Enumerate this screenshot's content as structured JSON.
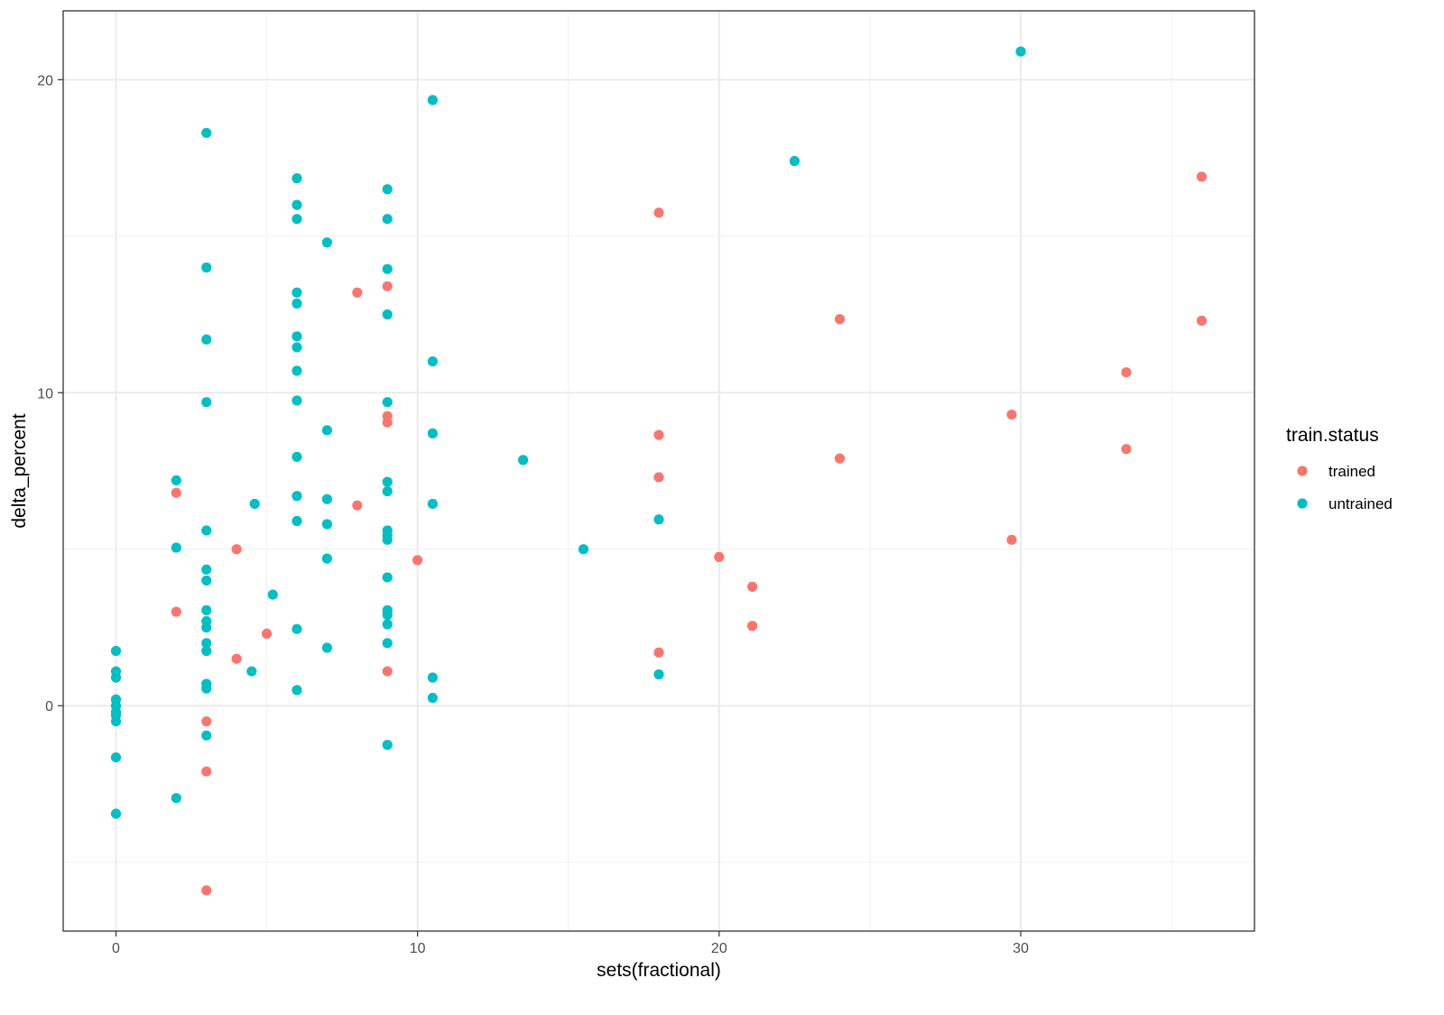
{
  "chart_data": {
    "type": "scatter",
    "title": "",
    "xlabel": "sets(fractional)",
    "ylabel": "delta_percent",
    "xlim": [
      -1.75,
      37.75
    ],
    "ylim": [
      -7.2,
      22.2
    ],
    "x_ticks": [
      0,
      10,
      20,
      30
    ],
    "y_ticks": [
      0,
      10,
      20
    ],
    "x_tick_labels": [
      "0",
      "10",
      "20",
      "30"
    ],
    "y_tick_labels": [
      "0",
      "10",
      "20"
    ],
    "grid": true,
    "legend": {
      "title": "train.status",
      "placement": "right",
      "entries": [
        "trained",
        "untrained"
      ]
    },
    "colors": {
      "trained": "#F8766D",
      "untrained": "#00BFC4"
    },
    "series": [
      {
        "name": "trained",
        "points": [
          [
            2,
            6.8
          ],
          [
            2,
            3.0
          ],
          [
            3,
            -0.5
          ],
          [
            3,
            -2.1
          ],
          [
            3,
            -5.9
          ],
          [
            4,
            5.0
          ],
          [
            4,
            1.5
          ],
          [
            5,
            2.3
          ],
          [
            8,
            6.4
          ],
          [
            8,
            13.2
          ],
          [
            9,
            13.4
          ],
          [
            9,
            9.25
          ],
          [
            9,
            9.05
          ],
          [
            9,
            3.0
          ],
          [
            9,
            1.1
          ],
          [
            10,
            4.65
          ],
          [
            18,
            15.75
          ],
          [
            18,
            8.65
          ],
          [
            18,
            7.3
          ],
          [
            18,
            1.7
          ],
          [
            20,
            4.75
          ],
          [
            21.1,
            3.8
          ],
          [
            21.1,
            2.55
          ],
          [
            24,
            12.35
          ],
          [
            24,
            7.9
          ],
          [
            29.7,
            9.3
          ],
          [
            29.7,
            5.3
          ],
          [
            33.5,
            10.65
          ],
          [
            33.5,
            8.2
          ],
          [
            36,
            16.9
          ],
          [
            36,
            12.3
          ]
        ]
      },
      {
        "name": "untrained",
        "points": [
          [
            0,
            1.75
          ],
          [
            0,
            1.1
          ],
          [
            0,
            0.9
          ],
          [
            0,
            0.2
          ],
          [
            0,
            0.0
          ],
          [
            0,
            -0.2
          ],
          [
            0,
            -0.3
          ],
          [
            0,
            -0.5
          ],
          [
            0,
            -1.65
          ],
          [
            0,
            -3.45
          ],
          [
            2,
            7.2
          ],
          [
            2,
            5.05
          ],
          [
            2,
            -2.95
          ],
          [
            3,
            18.3
          ],
          [
            3,
            14.0
          ],
          [
            3,
            11.7
          ],
          [
            3,
            9.7
          ],
          [
            3,
            5.6
          ],
          [
            3,
            4.35
          ],
          [
            3,
            4.0
          ],
          [
            3,
            3.05
          ],
          [
            3,
            2.7
          ],
          [
            3,
            2.5
          ],
          [
            3,
            2.0
          ],
          [
            3,
            1.75
          ],
          [
            3,
            0.7
          ],
          [
            3,
            0.55
          ],
          [
            3,
            -0.95
          ],
          [
            4.5,
            1.1
          ],
          [
            4.6,
            6.45
          ],
          [
            5.2,
            3.55
          ],
          [
            6,
            16.85
          ],
          [
            6,
            16.0
          ],
          [
            6,
            15.55
          ],
          [
            6,
            13.2
          ],
          [
            6,
            12.85
          ],
          [
            6,
            11.8
          ],
          [
            6,
            11.45
          ],
          [
            6,
            10.7
          ],
          [
            6,
            9.75
          ],
          [
            6,
            7.95
          ],
          [
            6,
            6.7
          ],
          [
            6,
            5.9
          ],
          [
            6,
            2.45
          ],
          [
            6,
            0.5
          ],
          [
            7,
            14.8
          ],
          [
            7,
            8.8
          ],
          [
            7,
            6.6
          ],
          [
            7,
            5.8
          ],
          [
            7,
            4.7
          ],
          [
            7,
            1.85
          ],
          [
            9,
            16.5
          ],
          [
            9,
            15.55
          ],
          [
            9,
            13.95
          ],
          [
            9,
            12.5
          ],
          [
            9,
            9.7
          ],
          [
            9,
            7.15
          ],
          [
            9,
            6.85
          ],
          [
            9,
            5.6
          ],
          [
            9,
            5.45
          ],
          [
            9,
            5.3
          ],
          [
            9,
            4.1
          ],
          [
            9,
            3.05
          ],
          [
            9,
            2.9
          ],
          [
            9,
            2.6
          ],
          [
            9,
            2.0
          ],
          [
            9,
            -1.25
          ],
          [
            10.5,
            19.35
          ],
          [
            10.5,
            11.0
          ],
          [
            10.5,
            8.7
          ],
          [
            10.5,
            6.45
          ],
          [
            10.5,
            0.9
          ],
          [
            10.5,
            0.25
          ],
          [
            13.5,
            7.85
          ],
          [
            15.5,
            5.0
          ],
          [
            18,
            5.95
          ],
          [
            18,
            1.0
          ],
          [
            22.5,
            17.4
          ],
          [
            30,
            20.9
          ]
        ]
      }
    ]
  }
}
